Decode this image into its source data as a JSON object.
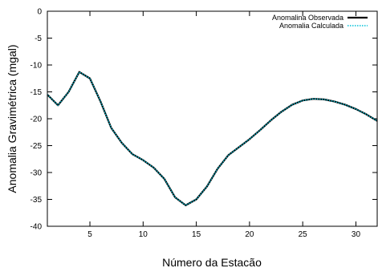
{
  "chart_data": {
    "type": "line",
    "title": "",
    "xlabel": "Número da Estacão",
    "ylabel": "Anomalia Gravimétrica (mgal)",
    "xlim": [
      1,
      32
    ],
    "ylim": [
      -40,
      0
    ],
    "x_ticks": [
      5,
      10,
      15,
      20,
      25,
      30
    ],
    "y_ticks": [
      0,
      -5,
      -10,
      -15,
      -20,
      -25,
      -30,
      -35,
      -40
    ],
    "grid": false,
    "legend_position": "top-right",
    "x": [
      1,
      2,
      3,
      4,
      5,
      6,
      7,
      8,
      9,
      10,
      11,
      12,
      13,
      14,
      15,
      16,
      17,
      18,
      19,
      20,
      21,
      22,
      23,
      24,
      25,
      26,
      27,
      28,
      29,
      30,
      31,
      32
    ],
    "series": [
      {
        "name": "Anomalina Observada",
        "color": "#000000",
        "style": "solid",
        "values": [
          -15.5,
          -17.5,
          -15,
          -11.3,
          -12.5,
          -16.8,
          -21.7,
          -24.5,
          -26.6,
          -27.7,
          -29.1,
          -31.2,
          -34.6,
          -36.1,
          -35,
          -32.6,
          -29.3,
          -26.8,
          -25.3,
          -23.8,
          -22.1,
          -20.3,
          -18.7,
          -17.4,
          -16.6,
          -16.3,
          -16.4,
          -16.8,
          -17.4,
          -18.2,
          -19.2,
          -20.4
        ]
      },
      {
        "name": "Anomalia Calculada",
        "color": "#00c0d8",
        "style": "dotted",
        "values": [
          -15.5,
          -17.5,
          -15,
          -11.3,
          -12.5,
          -16.8,
          -21.7,
          -24.5,
          -26.6,
          -27.7,
          -29.1,
          -31.2,
          -34.6,
          -36.1,
          -35,
          -32.6,
          -29.3,
          -26.8,
          -25.3,
          -23.8,
          -22.1,
          -20.3,
          -18.7,
          -17.4,
          -16.6,
          -16.3,
          -16.4,
          -16.8,
          -17.4,
          -18.2,
          -19.2,
          -20.4
        ]
      }
    ]
  }
}
